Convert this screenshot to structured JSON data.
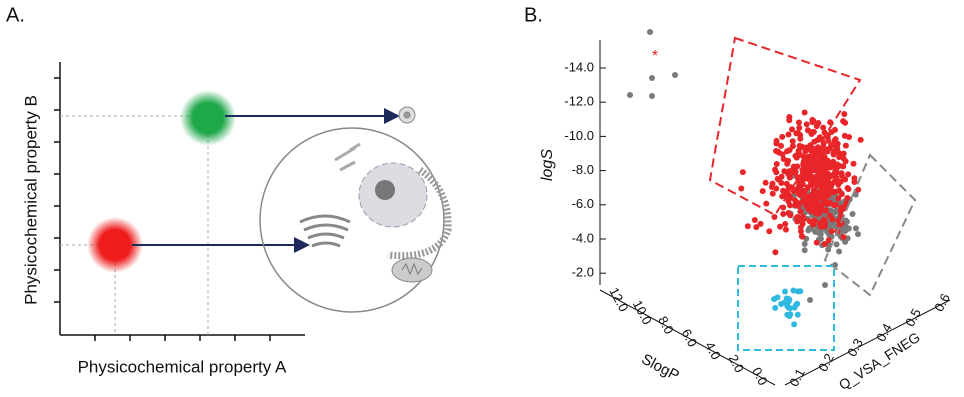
{
  "panel_a": {
    "label": "A.",
    "y_axis_label": "Physicochemical property B",
    "x_axis_label": "Physicochemical property A"
  },
  "panel_b": {
    "label": "B.",
    "asterisk": "*",
    "z_axis_label": "logS",
    "z_ticks": [
      "-14.0",
      "-12.0",
      "-10.0",
      "-8.0",
      "-6.0",
      "-4.0",
      "-2.0"
    ],
    "x_axis_label": "SlogP",
    "x_ticks": [
      "12.0",
      "10.0",
      "8.0",
      "6.0",
      "4.0",
      "2.0",
      "0.0"
    ],
    "y_axis_label": "Q_VSA_FNEG",
    "y_ticks": [
      "0.1",
      "0.2",
      "0.3",
      "0.4",
      "0.5",
      "0.6"
    ]
  }
}
